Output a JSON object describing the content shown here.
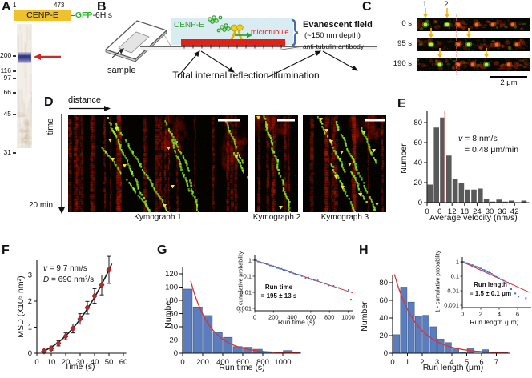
{
  "panels": {
    "A": {
      "letter": "A",
      "construct": {
        "start": "1",
        "end": "473",
        "domain": "CENP-E",
        "dash": "–",
        "gfp": "GFP",
        "his": "-6His"
      },
      "markers": [
        "200",
        "116",
        "97",
        "66",
        "45",
        "31"
      ]
    },
    "B": {
      "letter": "B",
      "sample": "sample",
      "cenp_e": "CENP-E",
      "microtubule": "microtubule",
      "evanescent_title": "Evanescent field",
      "evanescent_depth": "(~150 nm depth)",
      "antibody": "anti-tubulin antibody",
      "tir": "Total internal reflection illumination"
    },
    "C": {
      "letter": "C",
      "spot1": "1",
      "spot2": "2",
      "times": [
        "0 s",
        "95 s",
        "190 s"
      ],
      "scalebar": "2 μm"
    },
    "D": {
      "letter": "D",
      "distance": "distance",
      "time": "time",
      "duration": "20 min",
      "kymographs": [
        "Kymograph 1",
        "Kymograph 2",
        "Kymograph 3"
      ]
    },
    "E": {
      "letter": "E",
      "annot_var": "v",
      "annot_line1_rest": " = 8 nm/s",
      "annot_line2": "= 0.48 μm/min"
    },
    "F": {
      "letter": "F",
      "annot1_var": "v",
      "annot1_rest": " = 9.7 nm/s",
      "annot2_var": "D",
      "annot2_rest": " = 690 nm²/s"
    },
    "G": {
      "letter": "G",
      "inset_annot1": "Run time",
      "inset_annot2": "= 195 ± 13 s"
    },
    "H": {
      "letter": "H",
      "inset_annot1": "Run length",
      "inset_annot2": "= 1.5 ± 0.1 μm"
    }
  },
  "chart_data": [
    {
      "id": "velocity_histogram",
      "panel": "E",
      "type": "bar",
      "xlabel": "Average velocity (nm/s)",
      "ylabel": "Number",
      "bin_start": 0,
      "bin_width": 3,
      "values": [
        18,
        75,
        85,
        47,
        24,
        20,
        13,
        13,
        14,
        4,
        1,
        3,
        1,
        2,
        0,
        2
      ],
      "xticks": [
        0,
        6,
        12,
        18,
        24,
        30,
        36,
        42
      ],
      "yticks": [
        0,
        20,
        40,
        60,
        80
      ],
      "xlim": [
        0,
        49
      ],
      "ylim": [
        0,
        90
      ],
      "mean_line_x": 8.5,
      "bar_color": "#595959",
      "mean_line_color": "#f29090"
    },
    {
      "id": "msd_vs_time",
      "panel": "F",
      "type": "scatter",
      "xlabel": "Time (s)",
      "ylabel": "MSD (X10⁵ nm²)",
      "x": [
        5,
        10,
        15,
        20,
        25,
        30,
        35,
        40,
        45,
        50
      ],
      "y": [
        0.08,
        0.18,
        0.38,
        0.65,
        0.95,
        1.32,
        1.75,
        2.2,
        2.62,
        3.2
      ],
      "yerr": [
        0.05,
        0.07,
        0.1,
        0.13,
        0.17,
        0.2,
        0.24,
        0.28,
        0.38,
        0.52
      ],
      "fit": {
        "type": "quadratic",
        "a": 0.00102,
        "b": 0.013
      },
      "xticks": [
        0,
        10,
        20,
        30,
        40,
        50,
        60
      ],
      "yticks": [
        0,
        1,
        2,
        3
      ],
      "xlim": [
        0,
        62
      ],
      "ylim": [
        0,
        3.6
      ],
      "point_color": "#b02c2c",
      "fit_color": "#1a1a1a"
    },
    {
      "id": "run_time_histogram",
      "panel": "G",
      "type": "bar",
      "xlabel": "Run time (s)",
      "ylabel": "Number",
      "bin_start": 0,
      "bin_width": 100,
      "values": [
        97,
        70,
        57,
        31,
        24,
        10,
        9,
        6,
        2,
        0,
        4
      ],
      "xticks": [
        0,
        200,
        400,
        600,
        800,
        1000
      ],
      "yticks": [
        0,
        20,
        40,
        60,
        80,
        100,
        120
      ],
      "xlim": [
        0,
        1180
      ],
      "ylim": [
        0,
        131
      ],
      "fit": {
        "type": "exponential",
        "amplitude": 165,
        "tau": 195,
        "x_start": 80
      },
      "bar_color": "#5b7dbd",
      "fit_color": "#e03030"
    },
    {
      "id": "run_time_survival",
      "panel": "G-inset",
      "type": "scatter-log",
      "xlabel": "Run time (s)",
      "ylabel": "1 - cumulative probability",
      "xticks": [
        0,
        200,
        400,
        600,
        800,
        1000
      ],
      "ytick_labels": [
        "1",
        "0.1",
        "0.01",
        "0.001"
      ],
      "tau": 195,
      "x_max": 1030,
      "outliers": [
        [
          1005,
          0.014
        ],
        [
          1030,
          0.0035
        ]
      ],
      "point_color": "#4a6fba",
      "fit_color": "#e03030"
    },
    {
      "id": "run_length_histogram",
      "panel": "H",
      "type": "bar",
      "xlabel": "Run length (μm)",
      "ylabel": "Number",
      "bin_start": 0,
      "bin_width": 0.5,
      "values": [
        21,
        75,
        58,
        42,
        43,
        30,
        16,
        12,
        5,
        1,
        6,
        0,
        4,
        0,
        1
      ],
      "xticks": [
        0,
        1,
        2,
        3,
        4,
        5,
        6,
        7
      ],
      "yticks": [
        0,
        20,
        40,
        60,
        80
      ],
      "xlim": [
        0,
        7.9
      ],
      "ylim": [
        0,
        89
      ],
      "fit": {
        "type": "exponential",
        "amplitude": 97,
        "tau": 1.5,
        "x_start": 0.12
      },
      "bar_color": "#5b7dbd",
      "fit_color": "#e03030"
    },
    {
      "id": "run_length_survival",
      "panel": "H-inset",
      "type": "scatter-log",
      "xlabel": "Run length (μm)",
      "ylabel": "1 - cumulative probability",
      "xticks": [
        0,
        2,
        4,
        6
      ],
      "ytick_labels": [
        "1",
        "0.1",
        "0.01",
        "0.001"
      ],
      "tau": 1.5,
      "x_max": 7.0,
      "outliers": [
        [
          5.3,
          0.013
        ],
        [
          5.75,
          0.0065
        ],
        [
          6.1,
          0.004
        ],
        [
          6.9,
          0.003
        ]
      ],
      "point_color": "#4a6fba",
      "fit_color": "#e03030"
    }
  ],
  "colors": {
    "domain_bar": "#efc12c",
    "gfp_green": "#2db52d",
    "band_arrow": "#d22a20",
    "evanescent_box": "#d9ecf2",
    "microtubule_red": "#de2218",
    "schematic_green": "#2ca02c",
    "bracket_blue": "#4a6ab0",
    "yellow_arrow": "#f6b21b",
    "pink_line": "#f08080"
  }
}
